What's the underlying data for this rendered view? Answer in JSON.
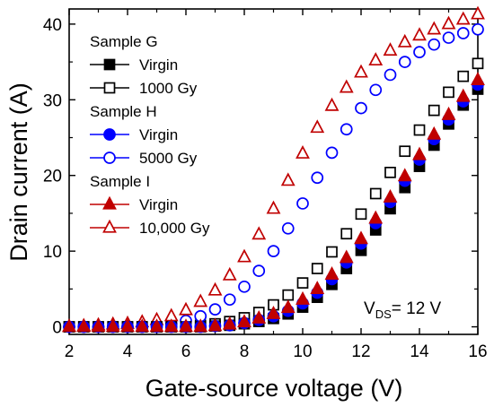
{
  "chart_data": {
    "type": "scatter",
    "title": "",
    "xlabel": "Gate-source voltage (V)",
    "ylabel": "Drain current (A)",
    "xlim": [
      2,
      16
    ],
    "ylim": [
      -1,
      42
    ],
    "xticks": [
      2,
      4,
      6,
      8,
      10,
      12,
      14,
      16
    ],
    "yticks": [
      0,
      10,
      20,
      30,
      40
    ],
    "x": [
      2.0,
      2.5,
      3.0,
      3.5,
      4.0,
      4.5,
      5.0,
      5.5,
      6.0,
      6.5,
      7.0,
      7.5,
      8.0,
      8.5,
      9.0,
      9.5,
      10.0,
      10.5,
      11.0,
      11.5,
      12.0,
      12.5,
      13.0,
      13.5,
      14.0,
      14.5,
      15.0,
      15.5,
      16.0
    ],
    "groups": [
      {
        "name": "Sample G",
        "series": [
          {
            "name": "Virgin",
            "marker": "square",
            "filled": true,
            "color": "#000000",
            "values": [
              0,
              0,
              0,
              0,
              0,
              0,
              0,
              0,
              0,
              0,
              0.1,
              0.2,
              0.4,
              0.7,
              1.1,
              1.7,
              2.6,
              3.9,
              5.6,
              7.7,
              10.1,
              12.8,
              15.6,
              18.4,
              21.2,
              24.0,
              26.8,
              29.3,
              31.4
            ]
          },
          {
            "name": "1000 Gy",
            "marker": "square",
            "filled": false,
            "color": "#000000",
            "values": [
              0,
              0,
              0,
              0,
              0,
              0,
              0,
              0,
              0.1,
              0.2,
              0.4,
              0.7,
              1.2,
              1.9,
              2.9,
              4.2,
              5.8,
              7.7,
              9.9,
              12.3,
              14.9,
              17.6,
              20.4,
              23.2,
              26.0,
              28.6,
              31.0,
              33.1,
              34.8
            ]
          }
        ]
      },
      {
        "name": "Sample H",
        "series": [
          {
            "name": "Virgin",
            "marker": "circle",
            "filled": true,
            "color": "#0000ff",
            "values": [
              0,
              0,
              0,
              0,
              0,
              0,
              0,
              0,
              0,
              0,
              0.1,
              0.2,
              0.5,
              0.9,
              1.4,
              2.1,
              3.1,
              4.5,
              6.3,
              8.5,
              11.0,
              13.7,
              16.5,
              19.3,
              22.1,
              24.8,
              27.4,
              29.8,
              32.0
            ]
          },
          {
            "name": "5000 Gy",
            "marker": "circle",
            "filled": false,
            "color": "#0000ff",
            "values": [
              0,
              0,
              0,
              0,
              0,
              0,
              0.2,
              0.4,
              0.8,
              1.4,
              2.3,
              3.6,
              5.3,
              7.4,
              10.0,
              13.0,
              16.3,
              19.7,
              23.0,
              26.1,
              28.9,
              31.3,
              33.3,
              35.0,
              36.3,
              37.3,
              38.2,
              38.8,
              39.3
            ]
          }
        ]
      },
      {
        "name": "Sample I",
        "series": [
          {
            "name": "Virgin",
            "marker": "triangle",
            "filled": true,
            "color": "#c00000",
            "values": [
              0,
              0,
              0,
              0,
              0,
              0,
              0,
              0,
              0,
              0,
              0.1,
              0.3,
              0.6,
              1.1,
              1.7,
              2.5,
              3.6,
              5.0,
              6.9,
              9.1,
              11.6,
              14.3,
              17.1,
              19.9,
              22.7,
              25.4,
              28.0,
              30.4,
              32.6
            ]
          },
          {
            "name": "10,000 Gy",
            "marker": "triangle",
            "filled": false,
            "color": "#c00000",
            "values": [
              0,
              0.1,
              0.2,
              0.3,
              0.4,
              0.6,
              0.9,
              1.4,
              2.2,
              3.3,
              4.8,
              6.8,
              9.2,
              12.2,
              15.6,
              19.3,
              22.9,
              26.3,
              29.2,
              31.6,
              33.6,
              35.2,
              36.5,
              37.6,
              38.5,
              39.3,
              40.0,
              40.6,
              41.3
            ]
          }
        ]
      }
    ],
    "legend_position": "top-left",
    "annotation": {
      "main": "V",
      "sub": "DS",
      "rest": "= 12 V"
    },
    "grid": false
  }
}
